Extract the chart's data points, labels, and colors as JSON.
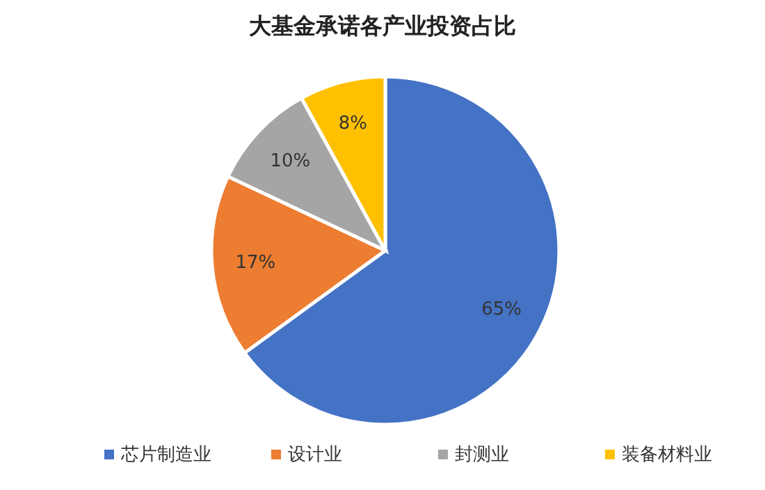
{
  "chart_data": {
    "type": "pie",
    "title": "大基金承诺各产业投资占比",
    "categories": [
      "芯片制造业",
      "设计业",
      "封测业",
      "装备材料业"
    ],
    "values": [
      65,
      17,
      10,
      8
    ],
    "colors": [
      "#4472c4",
      "#ed7d31",
      "#a5a5a5",
      "#ffc000"
    ],
    "value_labels": [
      "65%",
      "17%",
      "10%",
      "8%"
    ],
    "legend": "bottom"
  }
}
